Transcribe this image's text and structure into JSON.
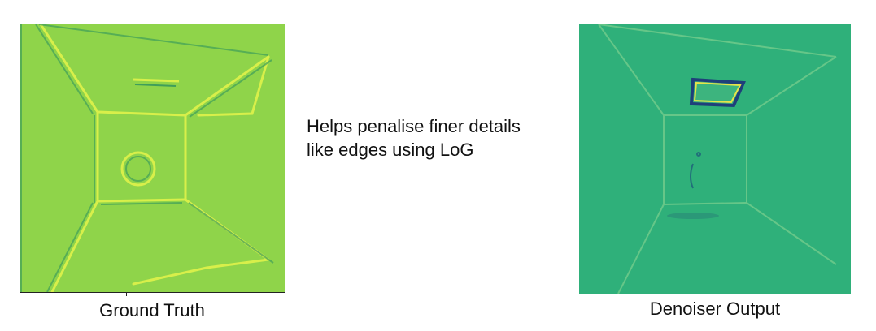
{
  "panels": {
    "ground_truth": {
      "caption": "Ground Truth"
    },
    "denoiser_output": {
      "caption": "Denoiser Output"
    }
  },
  "note": {
    "line1": "Helps penalise finer details",
    "line2": "like edges using LoG"
  },
  "colors": {
    "ground_truth_bg": "#8fd44a",
    "ground_truth_edge_light": "#d8ef4a",
    "ground_truth_edge_dark": "#3f9e5a",
    "denoiser_bg": "#2fb07a",
    "denoiser_edge_light": "#6cc98a",
    "denoiser_edge_dark": "#1f5f7a",
    "denoiser_edge_yellow": "#e6e34a"
  }
}
